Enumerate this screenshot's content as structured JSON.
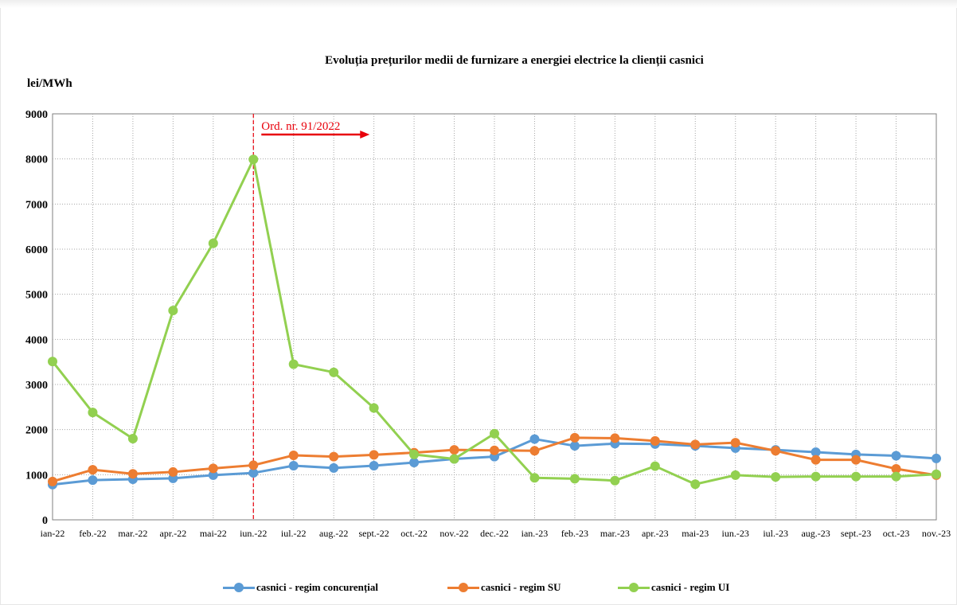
{
  "chart_data": {
    "type": "line",
    "title": "Evoluția prețurilor medii de furnizare a energiei electrice la clienții casnici",
    "ylabel": "lei/MWh",
    "xlabel": "",
    "ylim": [
      0,
      9000
    ],
    "yticks": [
      "0",
      "1000",
      "2000",
      "3000",
      "4000",
      "5000",
      "6000",
      "7000",
      "8000",
      "9000"
    ],
    "grid": true,
    "legend_position": "bottom",
    "categories": [
      "ian-22",
      "feb.-22",
      "mar.-22",
      "apr.-22",
      "mai-22",
      "iun.-22",
      "iul.-22",
      "aug.-22",
      "sept.-22",
      "oct.-22",
      "nov.-22",
      "dec.-22",
      "ian.-23",
      "feb.-23",
      "mar.-23",
      "apr.-23",
      "mai-23",
      "iun.-23",
      "iul.-23",
      "aug.-23",
      "sept.-23",
      "oct.-23",
      "nov.-23"
    ],
    "series": [
      {
        "name": "casnici - regim concurențial",
        "color": "#5b9bd5",
        "values": [
          780,
          880,
          900,
          920,
          990,
          1040,
          1200,
          1150,
          1200,
          1270,
          1350,
          1400,
          1790,
          1640,
          1690,
          1680,
          1640,
          1590,
          1550,
          1500,
          1450,
          1420,
          1360
        ]
      },
      {
        "name": "casnici - regim SU",
        "color": "#ed7d31",
        "values": [
          850,
          1110,
          1020,
          1060,
          1140,
          1210,
          1430,
          1400,
          1440,
          1490,
          1550,
          1540,
          1530,
          1820,
          1810,
          1750,
          1670,
          1710,
          1530,
          1330,
          1330,
          1130,
          990
        ]
      },
      {
        "name": "casnici - regim UI",
        "color": "#92d050",
        "values": [
          3510,
          2380,
          1800,
          4640,
          6130,
          7990,
          3450,
          3270,
          2480,
          1450,
          1350,
          1910,
          930,
          910,
          870,
          1190,
          790,
          990,
          950,
          960,
          960,
          960,
          1010
        ]
      }
    ],
    "annotations": [
      {
        "text": "Ord. nr. 91/2022",
        "x": "iun.-22",
        "color": "#e8000b"
      }
    ]
  }
}
